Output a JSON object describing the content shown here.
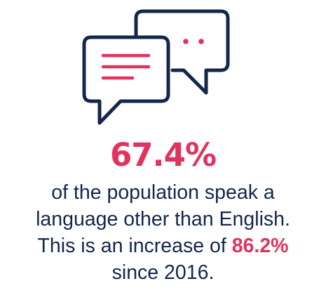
{
  "colors": {
    "navy": "#14264b",
    "accent": "#e0335e"
  },
  "icon": "speech-bubbles-icon",
  "headline": "67.4%",
  "text": {
    "line1": "of the population speak a",
    "line2": "language other than English.",
    "line3_prefix": "This is an increase of ",
    "line3_stat": "86.2%",
    "line4": "since 2016."
  }
}
